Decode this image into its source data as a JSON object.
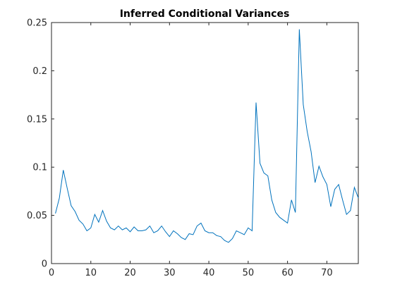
{
  "chart_data": {
    "type": "line",
    "title": "Inferred Conditional Variances",
    "xlabel": "",
    "ylabel": "",
    "xlim": [
      0,
      78
    ],
    "ylim": [
      0,
      0.25
    ],
    "xticks": [
      0,
      10,
      20,
      30,
      40,
      50,
      60,
      70
    ],
    "xtick_labels": [
      "0",
      "10",
      "20",
      "30",
      "40",
      "50",
      "60",
      "70"
    ],
    "yticks": [
      0,
      0.05,
      0.1,
      0.15,
      0.2,
      0.25
    ],
    "ytick_labels": [
      "0",
      "0.05",
      "0.1",
      "0.15",
      "0.2",
      "0.25"
    ],
    "grid": false,
    "box": true,
    "series": [
      {
        "color": "#0072bd",
        "x": [
          1,
          2,
          3,
          4,
          5,
          6,
          7,
          8,
          9,
          10,
          11,
          12,
          13,
          14,
          15,
          16,
          17,
          18,
          19,
          20,
          21,
          22,
          23,
          24,
          25,
          26,
          27,
          28,
          29,
          30,
          31,
          32,
          33,
          34,
          35,
          36,
          37,
          38,
          39,
          40,
          41,
          42,
          43,
          44,
          45,
          46,
          47,
          48,
          49,
          50,
          51,
          52,
          53,
          54,
          55,
          56,
          57,
          58,
          59,
          60,
          61,
          62,
          63,
          64,
          65,
          66,
          67,
          68,
          69,
          70,
          71,
          72,
          73,
          74,
          75,
          76,
          77,
          78
        ],
        "values": [
          0.052,
          0.068,
          0.097,
          0.078,
          0.06,
          0.054,
          0.045,
          0.041,
          0.034,
          0.037,
          0.051,
          0.043,
          0.055,
          0.044,
          0.037,
          0.035,
          0.039,
          0.035,
          0.037,
          0.033,
          0.038,
          0.034,
          0.034,
          0.035,
          0.039,
          0.032,
          0.034,
          0.039,
          0.033,
          0.028,
          0.034,
          0.031,
          0.027,
          0.025,
          0.031,
          0.03,
          0.039,
          0.042,
          0.034,
          0.032,
          0.032,
          0.029,
          0.028,
          0.024,
          0.022,
          0.026,
          0.034,
          0.032,
          0.03,
          0.037,
          0.034,
          0.167,
          0.104,
          0.094,
          0.091,
          0.066,
          0.053,
          0.048,
          0.045,
          0.042,
          0.066,
          0.053,
          0.243,
          0.165,
          0.137,
          0.116,
          0.084,
          0.101,
          0.09,
          0.082,
          0.059,
          0.077,
          0.082,
          0.066,
          0.051,
          0.055,
          0.079,
          0.068
        ]
      }
    ]
  }
}
